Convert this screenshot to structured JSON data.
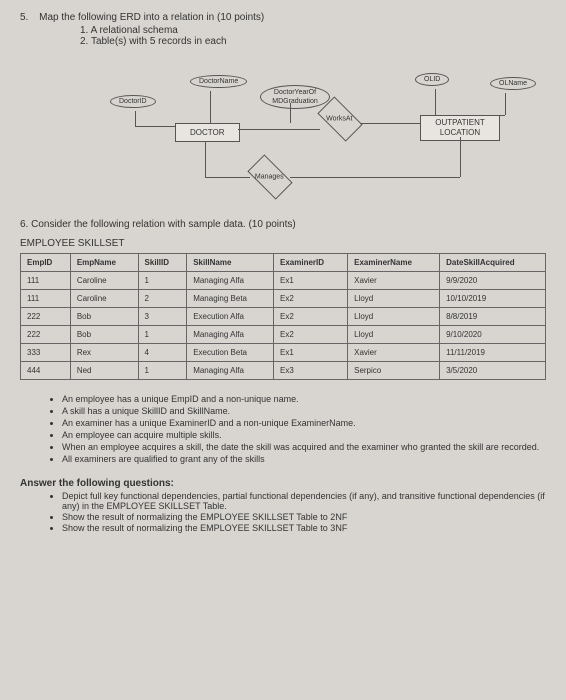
{
  "q5": {
    "number": "5.",
    "title": "Map the following ERD into a relation in (10 points)",
    "subs": [
      "1. A relational schema",
      "2. Table(s) with 5 records in each"
    ]
  },
  "erd": {
    "doctor": "DOCTOR",
    "doctorId": "DoctorID",
    "doctorName": "DoctorName",
    "doctorYear": "DoctorYearOf MDGraduation",
    "worksAt": "WorksAt",
    "manages": "Manages",
    "olid": "OLID",
    "olname": "OLName",
    "outpatient": "OUTPATIENT LOCATION"
  },
  "q6": {
    "text": "6. Consider the following relation with sample data. (10 points)",
    "tableTitle": "EMPLOYEE SKILLSET",
    "headers": [
      "EmpID",
      "EmpName",
      "SkillID",
      "SkillName",
      "ExaminerID",
      "ExaminerName",
      "DateSkillAcquired"
    ],
    "rows": [
      [
        "111",
        "Caroline",
        "1",
        "Managing Alfa",
        "Ex1",
        "Xavier",
        "9/9/2020"
      ],
      [
        "111",
        "Caroline",
        "2",
        "Managing Beta",
        "Ex2",
        "Lloyd",
        "10/10/2019"
      ],
      [
        "222",
        "Bob",
        "3",
        "Execution Alfa",
        "Ex2",
        "Lloyd",
        "8/8/2019"
      ],
      [
        "222",
        "Bob",
        "1",
        "Managing Alfa",
        "Ex2",
        "Lloyd",
        "9/10/2020"
      ],
      [
        "333",
        "Rex",
        "4",
        "Execution Beta",
        "Ex1",
        "Xavier",
        "11/11/2019"
      ],
      [
        "444",
        "Ned",
        "1",
        "Managing Alfa",
        "Ex3",
        "Serpico",
        "3/5/2020"
      ]
    ]
  },
  "notes": [
    "An employee has a unique EmpID and a non-unique name.",
    "A skill has a unique SkillID and SkillName.",
    "An examiner has a unique ExaminerID and a non-unique ExaminerName.",
    "An employee can acquire multiple skills.",
    "When an employee acquires a skill, the date the skill was acquired and the examiner who granted the skill are recorded.",
    "All examiners are qualified to grant any of the skills"
  ],
  "answer": {
    "title": "Answer the following questions:",
    "items": [
      "Depict full key functional dependencies, partial functional dependencies (if any), and transitive functional dependencies (if any) in the EMPLOYEE SKILLSET Table.",
      "Show the result of normalizing the EMPLOYEE SKILLSET Table to 2NF",
      "Show the result of normalizing the EMPLOYEE SKILLSET Table to 3NF"
    ]
  }
}
